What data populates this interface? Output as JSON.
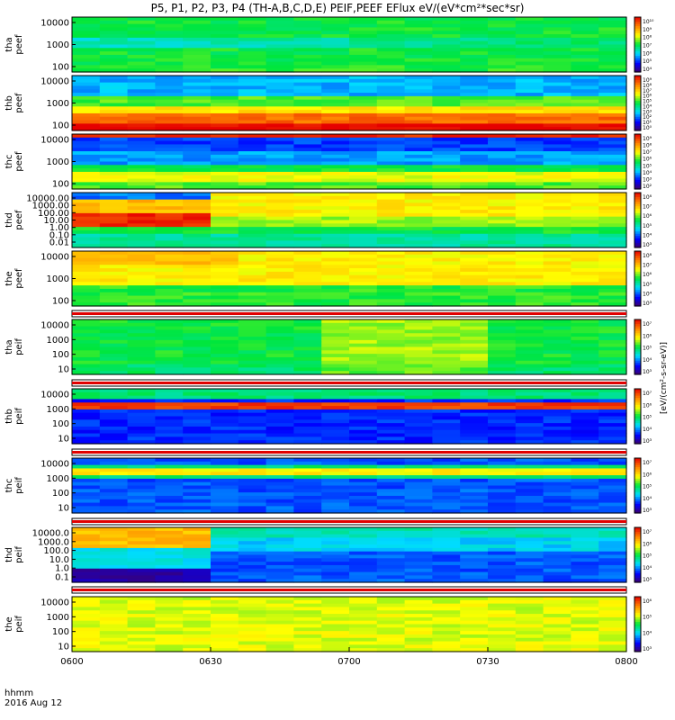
{
  "title": "P5, P1, P2, P3, P4 (TH-A,B,C,D,E) PEIF,PEEF EFlux eV/(eV*cm²*sec*sr)",
  "footer": {
    "time_label": "hhmm",
    "date_label": "2016 Aug 12"
  },
  "colorbar_unit": "[eV/(cm²-s-sr-eV)]",
  "colors": {
    "background": "#ffffff",
    "frame": "#000000"
  },
  "chart_data": {
    "type": "heatmap",
    "x_unit": "hhmm",
    "x_range": [
      "0600",
      "0800"
    ],
    "x_ticks": [
      "0600",
      "0630",
      "0700",
      "0730",
      "0800"
    ],
    "panels": [
      {
        "label": "tha peef",
        "yticks": [
          "10000",
          "1000",
          "100"
        ],
        "cbar_ticks": [
          "10¹⁰",
          "10⁹",
          "10⁸",
          "10⁷",
          "10⁶",
          "10⁵",
          "10⁴"
        ],
        "cmin": 4,
        "cmax": 10,
        "base": "green",
        "bands": "cyan strip near 100-1000 fading toward 0800"
      },
      {
        "label": "thb peef",
        "yticks": [
          "10000",
          "1000",
          "100"
        ],
        "cbar_ticks": [
          "10⁹",
          "10⁸",
          "10⁷",
          "10⁶",
          "10⁵",
          "10⁴",
          "10³",
          "10²",
          "10¹",
          "10⁰"
        ],
        "cmin": 0,
        "cmax": 9,
        "base": "blue",
        "bands": "red at low energy rising to yellow/green above"
      },
      {
        "label": "thc peef",
        "yticks": [
          "10000",
          "1000",
          "100"
        ],
        "cbar_ticks": [
          "10⁹",
          "10⁸",
          "10⁷",
          "10⁶",
          "10⁵",
          "10⁴",
          "10³",
          "10²"
        ],
        "cmin": 2,
        "cmax": 9,
        "base": "blue",
        "bands": "red below, yellow/green middle, dark blue top"
      },
      {
        "label": "thd peef",
        "yticks": [
          "10000.00",
          "1000.00",
          "100.00",
          "10.00",
          "1.00",
          "0.10",
          "0.01"
        ],
        "cbar_ticks": [
          "10⁸",
          "10⁷",
          "10⁶",
          "10⁵",
          "10⁴",
          "10³"
        ],
        "cmin": 3,
        "cmax": 8,
        "base": "yellow",
        "bands": "red/purple before 0630 then yellow; green/cyan below 10"
      },
      {
        "label": "the peef",
        "yticks": [
          "10000",
          "1000",
          "100"
        ],
        "cbar_ticks": [
          "10⁸",
          "10⁷",
          "10⁶",
          "10⁵",
          "10⁴",
          "10³"
        ],
        "cmin": 3,
        "cmax": 8,
        "base": "yellow",
        "bands": "orange at high energy early, green spikes below 100"
      },
      {
        "label": "tha peif",
        "yticks": [
          "10000",
          "1000",
          "100",
          "10"
        ],
        "cbar_ticks": [
          "10⁷",
          "10⁶",
          "10⁵",
          "10⁴",
          "10³"
        ],
        "cmin": 3,
        "cmax": 7,
        "base": "green",
        "bands": "green with yellow patch 0700-0730"
      },
      {
        "label": "thb peif",
        "yticks": [
          "10000",
          "1000",
          "100",
          "10"
        ],
        "cbar_ticks": [
          "10⁷",
          "10⁶",
          "10⁵",
          "10⁴",
          "10³"
        ],
        "cmin": 3,
        "cmax": 7,
        "base": "blue",
        "bands": "red band near 1000-2000, purple/black below"
      },
      {
        "label": "thc peif",
        "yticks": [
          "10000",
          "1000",
          "100",
          "10"
        ],
        "cbar_ticks": [
          "10⁷",
          "10⁶",
          "10⁵",
          "10⁴",
          "10³"
        ],
        "cmin": 3,
        "cmax": 7,
        "base": "blue",
        "bands": "yellow band near 5000, blue/purple below"
      },
      {
        "label": "thd peif",
        "yticks": [
          "10000.0",
          "1000.0",
          "100.0",
          "10.0",
          "1.0",
          "0.1"
        ],
        "cbar_ticks": [
          "10⁷",
          "10⁶",
          "10⁵",
          "10⁴",
          "10³"
        ],
        "cmin": 3,
        "cmax": 7,
        "base": "cyan",
        "bands": "yellow/orange before 0630, green/cyan after, black lows"
      },
      {
        "label": "the peif",
        "yticks": [
          "10000",
          "1000",
          "100",
          "10"
        ],
        "cbar_ticks": [
          "10⁶",
          "10⁵",
          "10⁴",
          "10³"
        ],
        "cmin": 3,
        "cmax": 6,
        "base": "yellow",
        "bands": "uniform yellow"
      }
    ]
  }
}
